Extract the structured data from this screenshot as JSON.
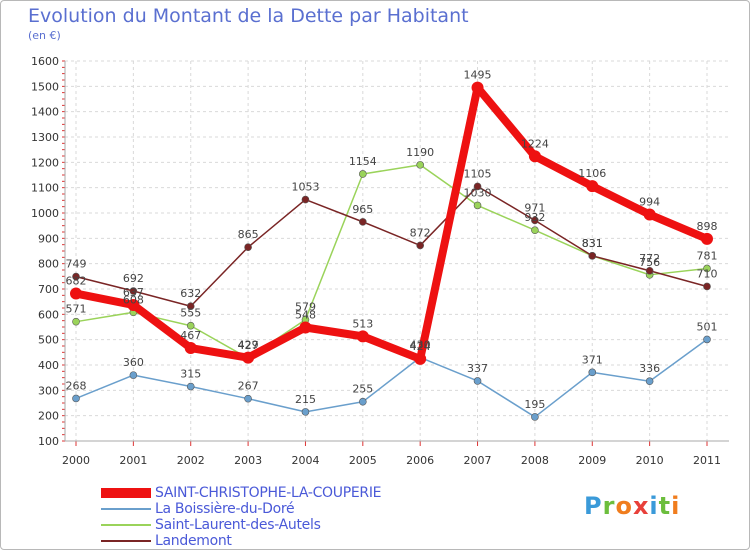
{
  "header": {
    "title": "Evolution du Montant de la Dette par Habitant",
    "unit": "(en €)"
  },
  "logo": {
    "text": "Proxiti",
    "letter_colors": [
      "#3a9ad9",
      "#6cbe3d",
      "#f07d1e",
      "#e8403a",
      "#3a9ad9",
      "#6cbe3d",
      "#f07d1e"
    ]
  },
  "chart_data": {
    "type": "line",
    "title": "Evolution du Montant de la Dette par Habitant",
    "subtitle": "(en €)",
    "xlabel": "",
    "ylabel": "",
    "x": [
      "2000",
      "2001",
      "2002",
      "2003",
      "2004",
      "2005",
      "2006",
      "2007",
      "2008",
      "2009",
      "2010",
      "2011"
    ],
    "ylim": [
      100,
      1600
    ],
    "yticks": [
      100,
      200,
      300,
      400,
      500,
      600,
      700,
      800,
      900,
      1000,
      1100,
      1200,
      1300,
      1400,
      1500,
      1600
    ],
    "grid": true,
    "legend_position": "bottom-left",
    "series": [
      {
        "name": "SAINT-CHRISTOPHE-LA-COUPERIE",
        "values": [
          682,
          637,
          467,
          429,
          548,
          513,
          424,
          1495,
          1224,
          1106,
          994,
          898
        ],
        "labels": [
          "682",
          "637",
          "467",
          "429",
          "548",
          "513",
          "424",
          "1495",
          "1224",
          "1106",
          "994",
          "898"
        ],
        "color": "#ee1111",
        "width": 8,
        "marker_r": 6
      },
      {
        "name": "La Boissière-du-Doré",
        "values": [
          268,
          360,
          315,
          267,
          215,
          255,
          430,
          337,
          195,
          371,
          336,
          501
        ],
        "labels": [
          "268",
          "360",
          "315",
          "267",
          "215",
          "255",
          "430",
          "337",
          "195",
          "371",
          "336",
          "501"
        ],
        "color": "#6a9fcc",
        "width": 1.5,
        "marker_r": 3.5
      },
      {
        "name": "Saint-Laurent-des-Autels",
        "values": [
          571,
          608,
          555,
          427,
          579,
          1154,
          1190,
          1030,
          932,
          831,
          756,
          781
        ],
        "labels": [
          "571",
          "608",
          "555",
          "427",
          "579",
          "1154",
          "1190",
          "1030",
          "932",
          "831",
          "756",
          "781"
        ],
        "color": "#9ad35a",
        "width": 1.5,
        "marker_r": 3.5
      },
      {
        "name": "Landemont",
        "values": [
          749,
          692,
          632,
          865,
          1053,
          965,
          872,
          1105,
          971,
          831,
          772,
          710
        ],
        "labels": [
          "749",
          "692",
          "632",
          "865",
          "1053",
          "965",
          "872",
          "1105",
          "971",
          "831",
          "772",
          "710"
        ],
        "color": "#7a2525",
        "width": 1.5,
        "marker_r": 3.5
      }
    ]
  }
}
